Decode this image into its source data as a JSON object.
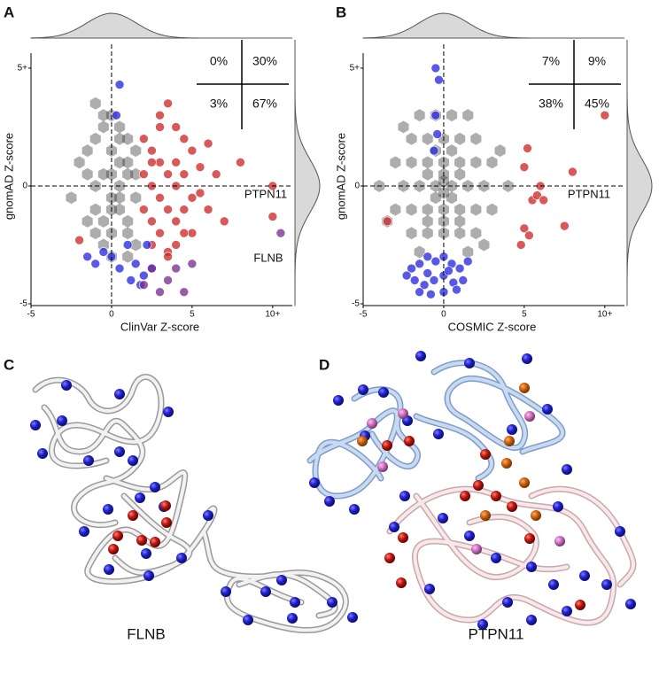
{
  "chart_data": [
    {
      "type": "scatter",
      "panel": "A",
      "xlabel": "ClinVar Z-score",
      "ylabel": "gnomAD Z-score",
      "xlim": [
        -5,
        11
      ],
      "ylim": [
        -5,
        6.2
      ],
      "xticks": [
        -5,
        0,
        5,
        {
          "value": 10,
          "label": "10+"
        }
      ],
      "yticks": [
        -5,
        0,
        {
          "value": 5,
          "label": "5+"
        }
      ],
      "quadrant_labels": [
        "0%",
        "30%",
        "3%",
        "67%"
      ],
      "annotations": [
        "PTPN11",
        "FLNB"
      ],
      "series": [
        {
          "marker": "hex",
          "color": "#333333",
          "x": [
            -2,
            -1.5,
            -1,
            -0.5,
            0,
            0.5,
            1,
            1.5,
            -1.5,
            -1,
            -0.5,
            0,
            0.5,
            1,
            1.5,
            -1,
            -0.5,
            0,
            0.5,
            1,
            -1,
            -0.5,
            0,
            0.5,
            1,
            1.5,
            -0.5,
            0,
            0.5,
            1,
            -2.5,
            -1,
            0,
            1,
            -1.5,
            0.5,
            1.5,
            0
          ],
          "values": [
            1,
            1.5,
            2,
            2.5,
            1.5,
            2,
            1,
            1.5,
            0.5,
            0,
            0.5,
            -0.5,
            0,
            0.5,
            -0.5,
            -1,
            -1.5,
            -1,
            -0.5,
            -1.5,
            -2,
            -2.5,
            -2,
            -1,
            -2,
            -2.5,
            3,
            3,
            2.5,
            2,
            -0.5,
            3.5,
            -3,
            -3,
            -1.5,
            1,
            0.5,
            0.5
          ]
        },
        {
          "marker": "circle",
          "color": "#cc2a2a",
          "x": [
            2,
            2.5,
            3,
            3.5,
            4,
            4.5,
            5,
            2,
            2.5,
            3,
            3.5,
            4,
            4.5,
            5,
            5.5,
            2,
            2.5,
            3,
            3.5,
            4,
            4.5,
            5,
            6,
            2.5,
            3,
            3.5,
            4,
            4.5,
            3,
            4,
            5.5,
            6,
            7,
            8,
            10,
            10,
            2.5,
            3.5,
            -2,
            6.5
          ],
          "values": [
            2,
            1.5,
            2.5,
            3.5,
            1,
            2,
            1.5,
            0.5,
            0,
            1,
            0.5,
            0,
            0.5,
            -0.5,
            0.8,
            -1,
            -1.5,
            -0.5,
            -1,
            -1.5,
            -1,
            -2,
            -1,
            -2.5,
            -2,
            -2.8,
            -2.5,
            -2,
            3,
            2.5,
            -0.3,
            1.8,
            -1.5,
            1,
            0,
            -1.3,
            1,
            -3,
            -2.3,
            0.5
          ]
        },
        {
          "marker": "circle",
          "color": "#2a2ae0",
          "x": [
            0.5,
            0.3,
            -1.5,
            -1,
            0,
            0.5,
            1.2,
            1.5,
            2,
            2.5,
            1,
            -0.5,
            2.2,
            1.8
          ],
          "values": [
            4.3,
            3,
            -3,
            -3.3,
            -3,
            -3.5,
            -4,
            -3.3,
            -3.8,
            -3.5,
            -2.5,
            -2.8,
            -2.5,
            -4.2
          ]
        },
        {
          "marker": "circle",
          "color": "#7a3090",
          "x": [
            2.5,
            3.5,
            4,
            5,
            4.5,
            3,
            10.5,
            2
          ],
          "values": [
            -3.5,
            -4,
            -3.5,
            -3.3,
            -4.5,
            -4.5,
            -2,
            -4.2
          ]
        }
      ]
    },
    {
      "type": "scatter",
      "panel": "B",
      "xlabel": "COSMIC Z-score",
      "ylabel": "gnomAD Z-score",
      "xlim": [
        -5,
        11
      ],
      "ylim": [
        -5,
        6.2
      ],
      "xticks": [
        -5,
        0,
        5,
        {
          "value": 10,
          "label": "10+"
        }
      ],
      "yticks": [
        -5,
        0,
        {
          "value": 5,
          "label": "5+"
        }
      ],
      "quadrant_labels": [
        "7%",
        "9%",
        "38%",
        "45%"
      ],
      "annotations": [
        "PTPN11"
      ],
      "series": [
        {
          "marker": "hex",
          "color": "#333333",
          "x": [
            -3,
            -2,
            -1,
            0,
            1,
            2,
            3,
            -3,
            -2,
            -1,
            0,
            1,
            2,
            3,
            -2.5,
            -1.5,
            -0.5,
            0.5,
            1.5,
            2.5,
            -2,
            -1,
            0,
            1,
            2,
            -2,
            -1,
            0,
            1,
            2,
            -1.5,
            -0.5,
            0.5,
            1.5,
            -1,
            0,
            1,
            -0.5,
            0.5,
            0,
            -4,
            4,
            -3.5,
            3.5,
            -2.5,
            2.5,
            -1,
            0,
            1,
            -0.5,
            0.5,
            0,
            -1.5,
            1.5
          ],
          "values": [
            1,
            1,
            1,
            1,
            1,
            1,
            1,
            -1,
            -1,
            -1,
            -1,
            -1,
            -1,
            -1,
            0,
            0,
            0,
            0,
            0,
            0,
            2,
            2,
            2,
            2,
            2,
            -2,
            -2,
            -2,
            -2,
            -2,
            3,
            3,
            3,
            3,
            0.5,
            0.5,
            0.5,
            -0.5,
            -0.5,
            -0.3,
            0,
            0,
            -1.5,
            1.5,
            2.5,
            -2.5,
            -1.5,
            -1.5,
            -1.5,
            1.5,
            1.5,
            0.2,
            -2.8,
            -2.8
          ]
        },
        {
          "marker": "circle",
          "color": "#2a2ae0",
          "x": [
            -0.5,
            -0.3,
            -0.5,
            -0.6,
            -0.4,
            -2,
            -1.5,
            -1,
            -0.5,
            0,
            0.5,
            1,
            -1.8,
            -1.2,
            -0.6,
            0,
            0.6,
            1.2,
            -1.5,
            -0.8,
            0,
            0.8,
            -1,
            0.3,
            -2.3,
            1.5
          ],
          "values": [
            5,
            4.5,
            3,
            1.5,
            2.2,
            -3.5,
            -3.3,
            -3,
            -3.2,
            -3,
            -3.3,
            -3.5,
            -4,
            -4.2,
            -4,
            -3.8,
            -4.1,
            -4,
            -4.5,
            -4.6,
            -4.5,
            -4.4,
            -3.7,
            -3.6,
            -3.8,
            -3.2
          ]
        },
        {
          "marker": "circle",
          "color": "#cc2a2a",
          "x": [
            10,
            5.2,
            5,
            6,
            5.5,
            8,
            7.5,
            5.8,
            5,
            -3.5,
            4.8,
            5.3,
            6.2
          ],
          "values": [
            3,
            1.6,
            0.8,
            0,
            -0.6,
            0.6,
            -1.7,
            -0.4,
            -1.8,
            -1.5,
            -2.5,
            -2.1,
            -0.6
          ]
        }
      ]
    }
  ],
  "panels": {
    "C": {
      "label": "C",
      "protein": "FLNB"
    },
    "D": {
      "label": "D",
      "protein": "PTPN11"
    }
  }
}
